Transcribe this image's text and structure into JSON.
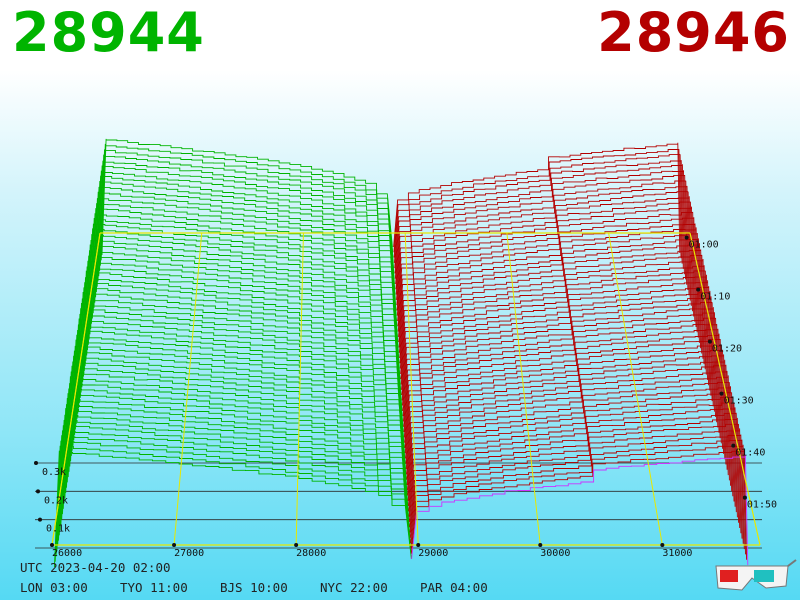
{
  "header": {
    "best_bid": "28944",
    "best_ask": "28946"
  },
  "footer": {
    "utc": "UTC 2023-04-20 02:00",
    "zones": [
      "LON 03:00",
      "TYO 11:00",
      "BJS 10:00",
      "NYC 22:00",
      "PAR 04:00"
    ]
  },
  "icons": {
    "glasses": "3d-glasses-icon"
  },
  "colors": {
    "bid": "#00b400",
    "ask": "#b40000",
    "grid": "#e8e800",
    "last_ask": "#cc33ff"
  },
  "chart_data": {
    "type": "area",
    "view": "3d-depth-history",
    "price_ticks": [
      26000,
      27000,
      28000,
      29000,
      30000,
      31000
    ],
    "volume_ticks": [
      "0.1k",
      "0.2k",
      "0.3k"
    ],
    "volume_values": [
      100,
      200,
      300
    ],
    "time_ticks": [
      "01:00",
      "01:10",
      "01:20",
      "01:30",
      "01:40",
      "01:50"
    ],
    "price_range": [
      26000,
      31800
    ],
    "volume_range": [
      0,
      300
    ],
    "snapshots": 60,
    "bid_series": {
      "name": "",
      "mid_price": 28944,
      "depth_at_min_price": 300
    },
    "ask_series": {
      "name": "",
      "mid_price": 28946,
      "depth_at_max_price": 300
    }
  }
}
